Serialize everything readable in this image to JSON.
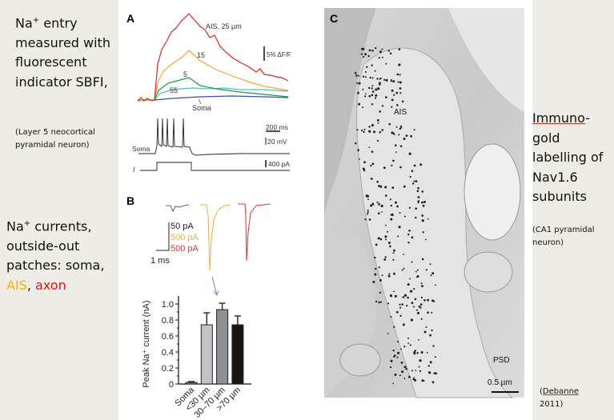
{
  "left_text": {
    "block1_prefix": "Na",
    "block1_sup": "+",
    "block1_rest": " entry measured with fluorescent indicator SBFI,",
    "block1_note": "(Layer 5 neocortical pyramidal neuron)",
    "block2_prefix": "Na",
    "block2_sup": "+",
    "block2_rest": " currents, outside-out patches:",
    "block2_soma": "soma, ",
    "block2_ais": "AIS",
    "block2_sep": ", ",
    "block2_axon": "axon",
    "colors": {
      "ais": "#f5b800",
      "axon": "#ee1111"
    }
  },
  "right_text": {
    "title_underlined": "Immuno",
    "title_rest": "-gold labelling of Nav1.6 subunits",
    "note": "(CA1 pyramidal neuron)",
    "citation_open": "(",
    "citation_author": "Debanne",
    "citation_year": " 2011)"
  },
  "panel_a": {
    "label": "A",
    "trace_labels": [
      "AIS, 25 µm",
      "15",
      "5",
      "55",
      "Soma"
    ],
    "trace_colors": [
      "#e02424",
      "#f3a531",
      "#1e9646",
      "#4cc0c8",
      "#3b4ea0"
    ],
    "scale_fluor": "5% ΔF/F",
    "scale_time": "200 ms",
    "scale_voltage": "20 mV",
    "scale_current": "400 pA",
    "soma_label": "Soma",
    "current_label": "I"
  },
  "panel_b": {
    "label": "B",
    "scale_labels": [
      {
        "text": "50 pA",
        "color": "#222222"
      },
      {
        "text": "500 pA",
        "color": "#f0b040"
      },
      {
        "text": "500 pA",
        "color": "#e03030"
      }
    ],
    "scale_time": "1 ms",
    "arrow_color": "#5b8fd0"
  },
  "chart_data": {
    "type": "bar",
    "categories": [
      "Soma",
      "<30 µm",
      "30–70 µm",
      ">70 µm"
    ],
    "values": [
      0.02,
      0.74,
      0.93,
      0.74
    ],
    "errors": [
      0.01,
      0.15,
      0.08,
      0.11
    ],
    "bar_colors": [
      "#8a8a8a",
      "#c0c2c6",
      "#8e9194",
      "#1a1515"
    ],
    "ylabel": "Peak Na⁺ current (nA)",
    "xlabel": "",
    "ylim": [
      0,
      1.1
    ],
    "yticks": [
      "0",
      "0.2",
      "0.4",
      "0.6",
      "0.8",
      "1.0"
    ],
    "grid": false
  },
  "panel_c": {
    "label": "C",
    "region_label": "AIS",
    "psd_label": "PSD",
    "scale_label": "0.5 µm"
  }
}
